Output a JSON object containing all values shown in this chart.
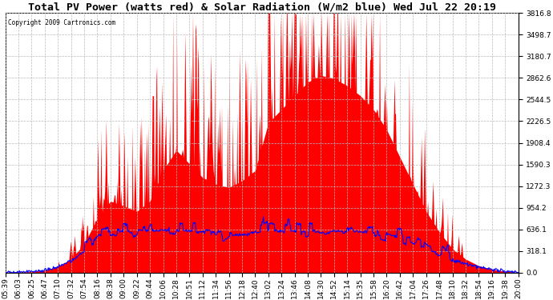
{
  "title": "Total PV Power (watts red) & Solar Radiation (W/m2 blue) Wed Jul 22 20:19",
  "copyright": "Copyright 2009 Cartronics.com",
  "y_max": 3816.8,
  "y_ticks": [
    0.0,
    318.1,
    636.1,
    954.2,
    1272.3,
    1590.3,
    1908.4,
    2226.5,
    2544.5,
    2862.6,
    3180.7,
    3498.7,
    3816.8
  ],
  "x_labels": [
    "05:39",
    "06:03",
    "06:25",
    "06:47",
    "07:10",
    "07:32",
    "07:54",
    "08:16",
    "08:38",
    "09:00",
    "09:22",
    "09:44",
    "10:06",
    "10:28",
    "10:51",
    "11:12",
    "11:34",
    "11:56",
    "12:18",
    "12:40",
    "13:02",
    "13:24",
    "13:46",
    "14:08",
    "14:30",
    "14:52",
    "15:14",
    "15:35",
    "15:58",
    "16:20",
    "16:42",
    "17:04",
    "17:26",
    "17:48",
    "18:10",
    "18:32",
    "18:54",
    "19:16",
    "19:38",
    "20:00"
  ],
  "background_color": "#ffffff",
  "grid_color": "#bbbbbb",
  "red_color": "#ff0000",
  "blue_color": "#0000ff",
  "title_fontsize": 9.5,
  "tick_fontsize": 6.5,
  "pv_envelope": [
    5,
    8,
    15,
    35,
    90,
    200,
    420,
    800,
    1050,
    980,
    900,
    1050,
    1500,
    1800,
    1600,
    1400,
    1300,
    1250,
    1350,
    1500,
    2200,
    2400,
    2600,
    2800,
    2900,
    2850,
    2750,
    2600,
    2400,
    2100,
    1700,
    1300,
    900,
    600,
    350,
    200,
    100,
    50,
    20,
    5
  ],
  "solar_envelope": [
    5,
    8,
    15,
    35,
    70,
    160,
    280,
    480,
    560,
    540,
    510,
    545,
    560,
    570,
    540,
    520,
    510,
    495,
    510,
    530,
    545,
    550,
    545,
    535,
    530,
    545,
    535,
    540,
    525,
    510,
    465,
    400,
    320,
    240,
    160,
    115,
    75,
    45,
    20,
    5
  ],
  "solar_max_display": 636.1,
  "n_points": 800,
  "seed": 77
}
